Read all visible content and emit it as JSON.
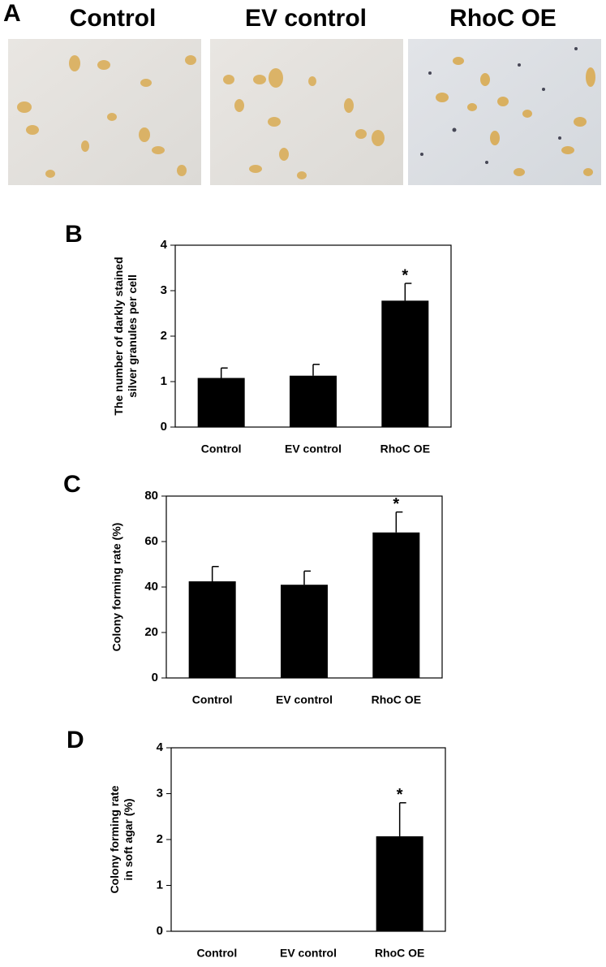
{
  "panel_a": {
    "letter": "A",
    "labels": [
      "Control",
      "EV control",
      "RhoC OE"
    ]
  },
  "chart_data": [
    {
      "type": "bar",
      "letter": "B",
      "ylabel": [
        "The number of darkly stained",
        "silver granules per cell"
      ],
      "categories": [
        "Control",
        "EV control",
        "RhoC OE"
      ],
      "values": [
        1.08,
        1.13,
        2.78
      ],
      "errors": [
        0.22,
        0.25,
        0.38
      ],
      "markers": [
        null,
        null,
        "*"
      ],
      "color": "#000000",
      "ylim": [
        0,
        4
      ],
      "yticks": [
        0,
        1,
        2,
        3,
        4
      ]
    },
    {
      "type": "bar",
      "letter": "C",
      "ylabel": [
        "Colony forming rate (%)"
      ],
      "categories": [
        "Control",
        "EV control",
        "RhoC OE"
      ],
      "values": [
        42.5,
        41,
        64
      ],
      "errors": [
        6.5,
        6,
        9
      ],
      "markers": [
        null,
        null,
        "*"
      ],
      "color": "#000000",
      "ylim": [
        0,
        80
      ],
      "yticks": [
        0,
        20,
        40,
        60,
        80
      ]
    },
    {
      "type": "bar",
      "letter": "D",
      "ylabel": [
        "Colony forming rate",
        "in soft agar (%)"
      ],
      "categories": [
        "Control",
        "EV control",
        "RhoC OE"
      ],
      "values": [
        0,
        0,
        2.07
      ],
      "errors": [
        null,
        null,
        0.73
      ],
      "markers": [
        null,
        null,
        "*"
      ],
      "color": "#000000",
      "ylim": [
        0,
        4
      ],
      "yticks": [
        0,
        1,
        2,
        3,
        4
      ]
    }
  ]
}
